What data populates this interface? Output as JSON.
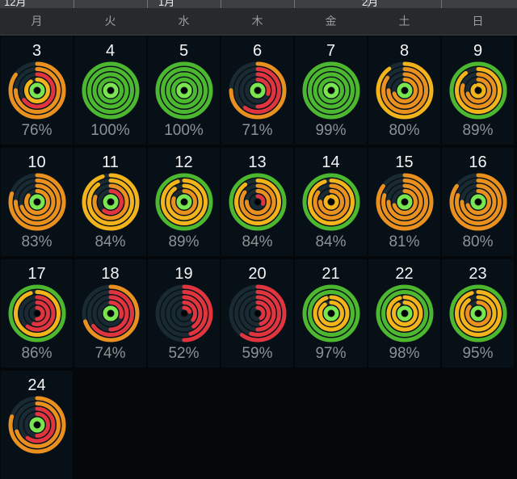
{
  "months": [
    {
      "label": "12月"
    },
    {
      "label": "1月"
    },
    {
      "label": "2月"
    }
  ],
  "weekdays": [
    "月",
    "火",
    "水",
    "木",
    "金",
    "土",
    "日"
  ],
  "colors": {
    "red": "#e0353f",
    "orange": "#e9901f",
    "yellow": "#f3b31a",
    "green": "#4cb82f",
    "light_green": "#79e650",
    "track": "#192a33",
    "background": "#05080a"
  },
  "days": [
    {
      "day": "3",
      "percent": "76%",
      "rings": [
        0.85,
        0.75,
        0.65,
        0.9,
        1.0
      ]
    },
    {
      "day": "4",
      "percent": "100%",
      "rings": [
        1.0,
        1.0,
        1.0,
        1.0,
        1.0
      ]
    },
    {
      "day": "5",
      "percent": "100%",
      "rings": [
        1.0,
        1.0,
        1.0,
        1.0,
        1.0
      ]
    },
    {
      "day": "6",
      "percent": "71%",
      "rings": [
        0.75,
        0.6,
        0.5,
        0.3,
        1.0
      ]
    },
    {
      "day": "7",
      "percent": "99%",
      "rings": [
        1.0,
        1.0,
        1.0,
        1.0,
        1.0
      ]
    },
    {
      "day": "8",
      "percent": "80%",
      "rings": [
        0.9,
        0.85,
        0.75,
        0.7,
        1.0
      ]
    },
    {
      "day": "9",
      "percent": "89%",
      "rings": [
        1.0,
        0.9,
        0.8,
        0.7,
        0.9
      ]
    },
    {
      "day": "10",
      "percent": "83%",
      "rings": [
        0.8,
        0.75,
        0.7,
        0.85,
        1.0
      ]
    },
    {
      "day": "11",
      "percent": "84%",
      "rings": [
        0.95,
        0.9,
        0.8,
        0.6,
        1.0
      ]
    },
    {
      "day": "12",
      "percent": "89%",
      "rings": [
        1.0,
        0.95,
        0.9,
        0.8,
        1.0
      ]
    },
    {
      "day": "13",
      "percent": "84%",
      "rings": [
        1.0,
        0.9,
        0.85,
        0.75,
        0.3
      ]
    },
    {
      "day": "14",
      "percent": "84%",
      "rings": [
        1.0,
        0.95,
        0.85,
        0.75,
        0.9
      ]
    },
    {
      "day": "15",
      "percent": "81%",
      "rings": [
        0.85,
        0.8,
        0.75,
        0.7,
        1.0
      ]
    },
    {
      "day": "16",
      "percent": "80%",
      "rings": [
        0.85,
        0.8,
        0.75,
        0.7,
        1.0
      ]
    },
    {
      "day": "17",
      "percent": "86%",
      "rings": [
        1.0,
        0.95,
        0.6,
        0.55,
        0.5
      ]
    },
    {
      "day": "18",
      "percent": "74%",
      "rings": [
        0.7,
        0.65,
        0.5,
        0.3,
        1.0
      ]
    },
    {
      "day": "19",
      "percent": "52%",
      "rings": [
        0.5,
        0.45,
        0.4,
        0.35,
        0.2
      ]
    },
    {
      "day": "20",
      "percent": "59%",
      "rings": [
        0.6,
        0.55,
        0.5,
        0.45,
        0.4
      ]
    },
    {
      "day": "21",
      "percent": "97%",
      "rings": [
        1.0,
        1.0,
        0.95,
        0.9,
        1.0
      ]
    },
    {
      "day": "22",
      "percent": "98%",
      "rings": [
        1.0,
        1.0,
        0.95,
        0.9,
        1.0
      ]
    },
    {
      "day": "23",
      "percent": "95%",
      "rings": [
        1.0,
        0.95,
        0.9,
        0.85,
        1.0
      ]
    },
    {
      "day": "24",
      "percent": "",
      "rings": [
        0.8,
        0.7,
        0.6,
        0.5,
        1.0
      ]
    }
  ]
}
